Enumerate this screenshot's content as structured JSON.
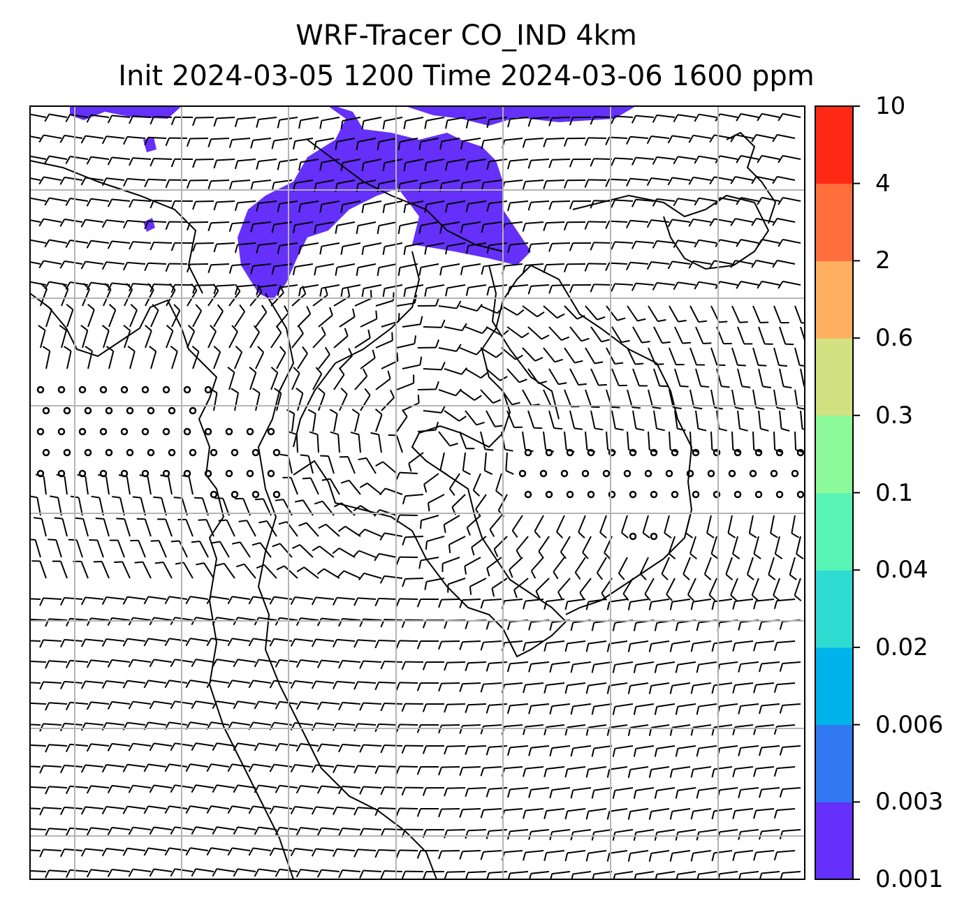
{
  "title_line1": "WRF-Tracer CO_IND 4km",
  "title_line2": "Init 2024-03-05 1200 Time 2024-03-06 1600 ppm",
  "colorbar": {
    "ticks": [
      "0.001",
      "0.003",
      "0.006",
      "0.02",
      "0.04",
      "0.1",
      "0.3",
      "0.6",
      "2",
      "4",
      "10"
    ],
    "colors": [
      "#6430fa",
      "#3278f0",
      "#00b4eb",
      "#2fdcd2",
      "#5af5b4",
      "#8cfa9b",
      "#d2e182",
      "#ffaf5f",
      "#ff6e3c",
      "#ff2814"
    ]
  },
  "map_style": {
    "tracer_color": "#6430fa",
    "grid_color": "#b4b4b4",
    "coast_color": "#000000",
    "barb_color": "#000000"
  }
}
